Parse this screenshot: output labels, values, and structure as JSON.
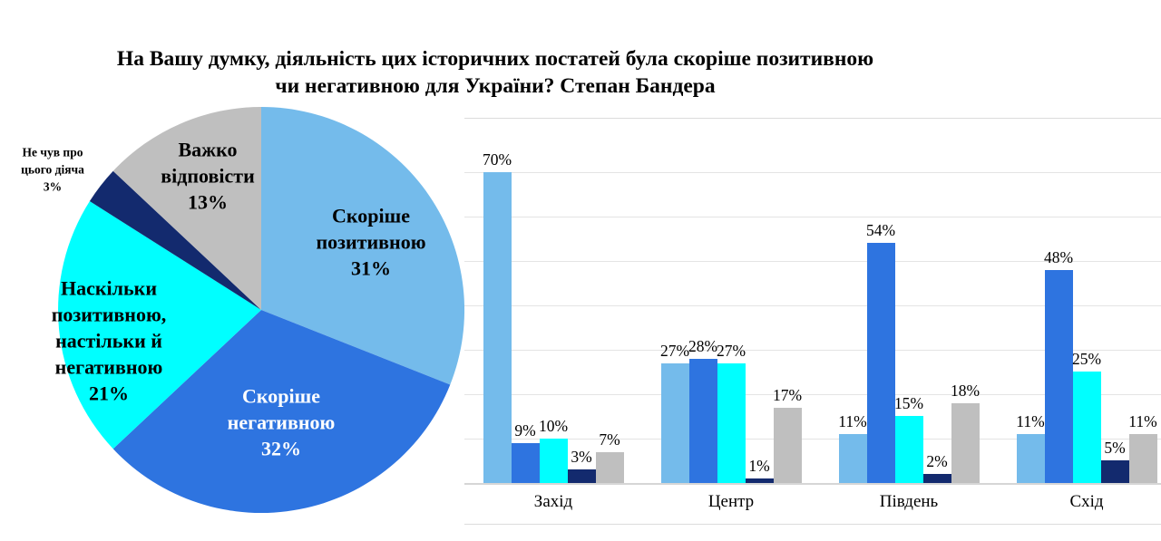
{
  "title": "На Вашу думку, діяльність цих історичних постатей була скоріше позитивною чи негативною для України? Степан Бандера",
  "colors": {
    "positive": "#74BBEB",
    "negative": "#2E74E0",
    "mixed": "#00FFFF",
    "not_heard": "#132A6E",
    "hard_to_say": "#BFBFBF",
    "gridline": "#E4E4E4",
    "axis_line": "#D6D6D6",
    "title_text": "#000000",
    "negative_label_text": "#FFFFFF"
  },
  "chart_data": [
    {
      "type": "pie",
      "title": "",
      "start_angle_deg": 0,
      "direction": "clockwise",
      "legend": "none",
      "labels_position": "inside-except-smallest",
      "slices": [
        {
          "key": "positive",
          "label": "Скоріше позитивною",
          "value": 31,
          "pct": "31%",
          "color_key": "positive"
        },
        {
          "key": "negative",
          "label": "Скоріше негативною",
          "value": 32,
          "pct": "32%",
          "color_key": "negative"
        },
        {
          "key": "mixed",
          "label": "Наскільки позитивною, настільки й негативною",
          "value": 21,
          "pct": "21%",
          "color_key": "mixed"
        },
        {
          "key": "not-heard",
          "label": "Не чув про цього діяча",
          "value": 3,
          "pct": "3%",
          "color_key": "not_heard"
        },
        {
          "key": "hard-to-say",
          "label": "Важко відповісти",
          "value": 13,
          "pct": "13%",
          "color_key": "hard_to_say"
        }
      ]
    },
    {
      "type": "bar",
      "title": "",
      "categories": [
        "Захід",
        "Центр",
        "Південь",
        "Схід"
      ],
      "series": [
        {
          "name": "Скоріше позитивною",
          "color_key": "positive",
          "values": [
            70,
            27,
            11,
            11
          ]
        },
        {
          "name": "Скоріше негативною",
          "color_key": "negative",
          "values": [
            9,
            28,
            54,
            48
          ]
        },
        {
          "name": "Наскільки позитивною, настільки й негативною",
          "color_key": "mixed",
          "values": [
            10,
            27,
            15,
            25
          ]
        },
        {
          "name": "Не чув про цього діяча",
          "color_key": "not_heard",
          "values": [
            3,
            1,
            2,
            5
          ]
        },
        {
          "name": "Важко відповісти",
          "color_key": "hard_to_say",
          "values": [
            7,
            17,
            18,
            11
          ]
        }
      ],
      "value_suffix": "%",
      "data_labels": "outside-end",
      "ylabel": "",
      "xlabel": "",
      "ylim": [
        0,
        82
      ],
      "grid_step": 10,
      "grid": "on",
      "legend": "none"
    }
  ]
}
